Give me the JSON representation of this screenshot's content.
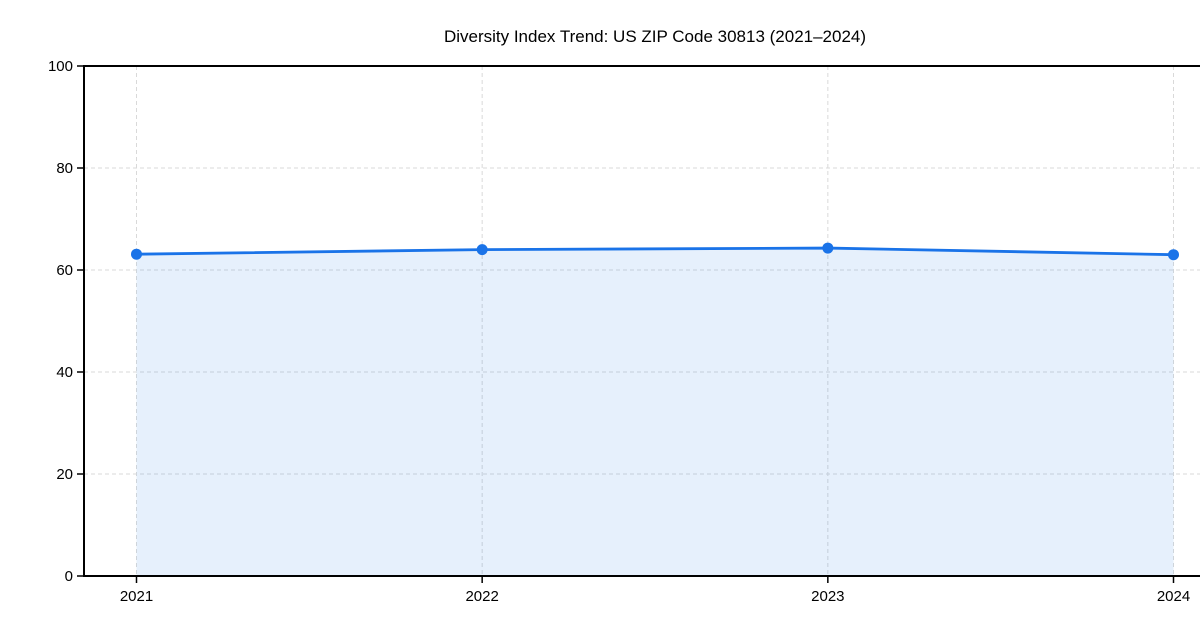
{
  "chart_data": {
    "type": "area",
    "title": "Diversity Index Trend: US ZIP Code 30813 (2021–2024)",
    "categories": [
      "2021",
      "2022",
      "2023",
      "2024"
    ],
    "values": [
      63.1,
      64.0,
      64.3,
      63.0
    ],
    "xlabel": "",
    "ylabel": "",
    "ylim": [
      0,
      100
    ],
    "yticks": [
      0,
      20,
      40,
      60,
      80,
      100
    ],
    "grid": true,
    "grid_style": "dashed",
    "legend_position": "none",
    "colors": {
      "line": "#1a73e8",
      "marker": "#1a73e8",
      "fill": "rgba(26,115,232,0.11)",
      "grid": "#d9d9d9",
      "frame": "#000000",
      "tick": "#000000",
      "text": "#000000",
      "background": "#ffffff"
    }
  }
}
